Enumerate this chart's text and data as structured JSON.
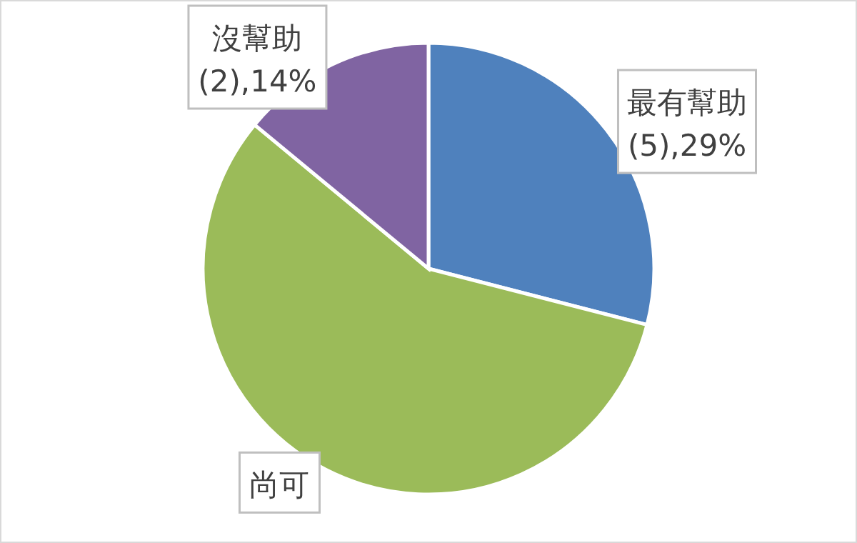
{
  "chart_data": {
    "type": "pie",
    "categories": [
      "最有幫助",
      "尚可",
      "沒幫助"
    ],
    "values": [
      29,
      57,
      14
    ],
    "value_labels": [
      "(5),29%",
      null,
      "(2),14%"
    ],
    "colors": [
      "#4f81bd",
      "#9bbb59",
      "#8064a2"
    ]
  }
}
